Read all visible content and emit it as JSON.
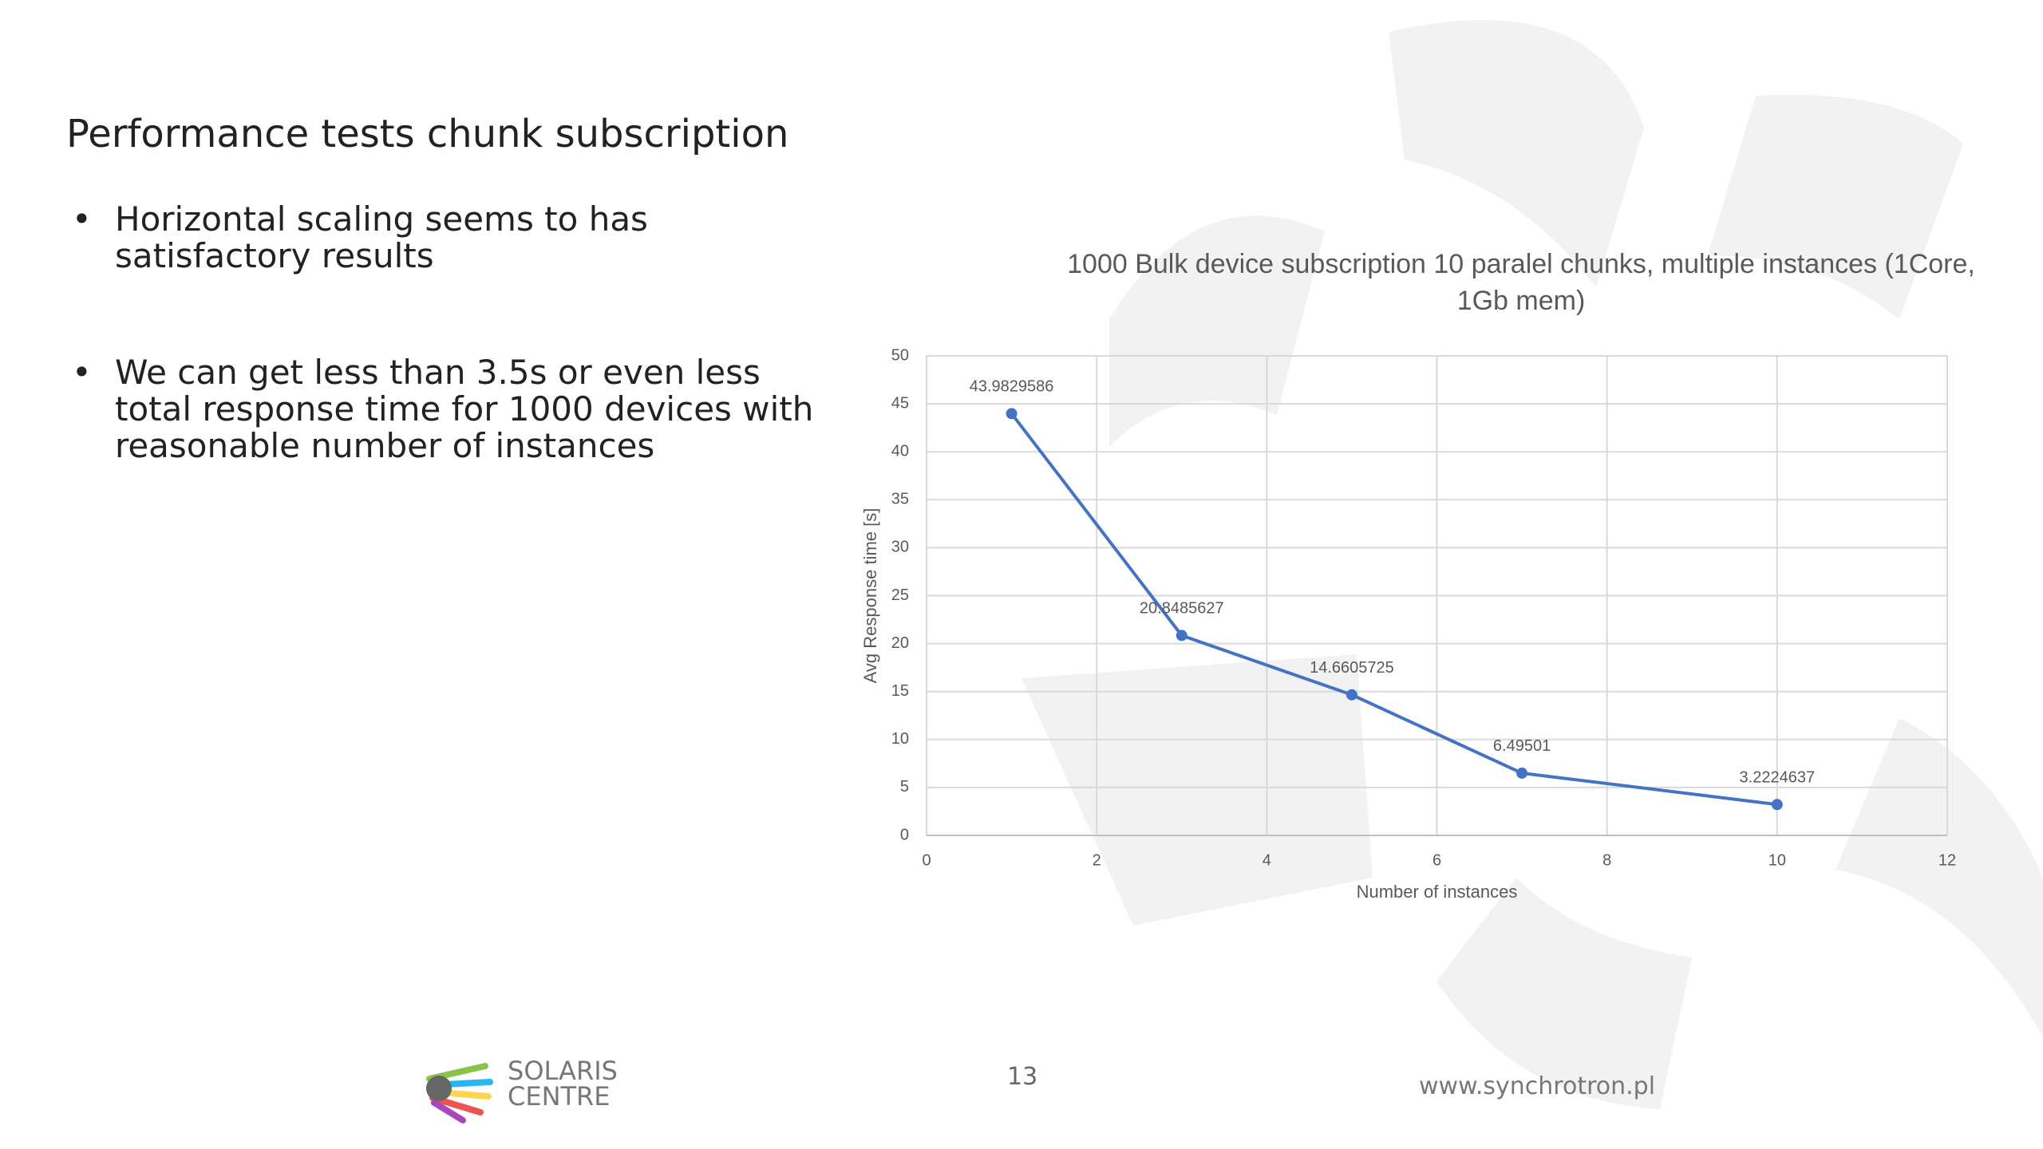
{
  "slide": {
    "title": "Performance tests chunk subscription",
    "bullets": [
      "Horizontal scaling seems to has satisfactory results",
      "We can get less than 3.5s or even less total response time for 1000 devices with reasonable number of instances"
    ],
    "page_number": 13,
    "logo_text": [
      "SOLARIS",
      "CENTRE"
    ],
    "website": "www.synchrotron.pl"
  },
  "chart_data": {
    "type": "line",
    "title": "1000 Bulk device subscription 10 paralel chunks, multiple instances (1Core, 1Gb mem)",
    "x_label": "Number of instances",
    "y_label": "Avg Response time [s]",
    "x": [
      1,
      3,
      5,
      7,
      10
    ],
    "series": [
      {
        "name": "Avg Response time",
        "color": "#4472c4",
        "values": [
          43.9829586,
          20.8485627,
          14.6605725,
          6.49501,
          3.2224637
        ]
      }
    ],
    "xlim": [
      0,
      12
    ],
    "xticks": [
      0,
      2,
      4,
      6,
      8,
      10,
      12
    ],
    "ylim": [
      0,
      50
    ],
    "yticks": [
      0,
      5,
      10,
      15,
      20,
      25,
      30,
      35,
      40,
      45,
      50
    ],
    "grid": true,
    "data_labels": true
  }
}
